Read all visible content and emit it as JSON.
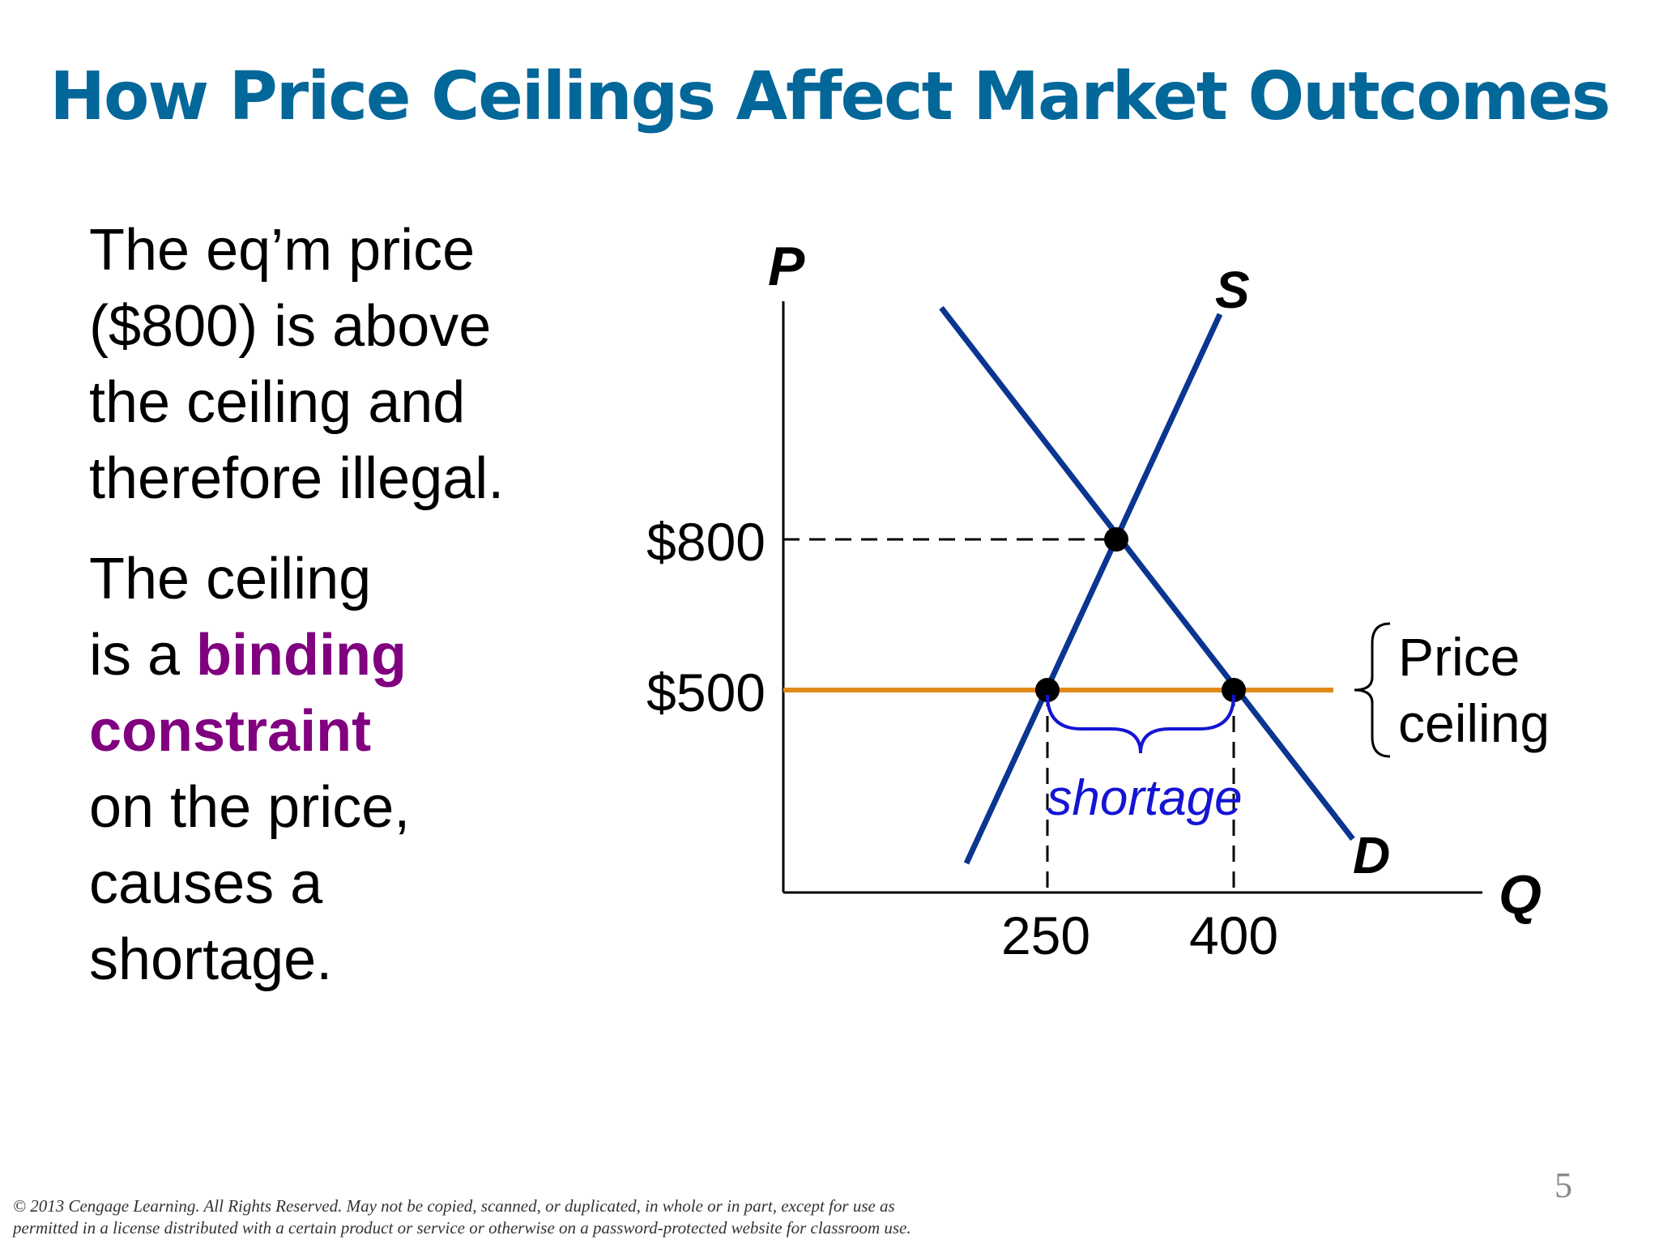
{
  "slide": {
    "title": "How Price Ceilings Affect Market Outcomes",
    "page_number": "5"
  },
  "body": {
    "para1": [
      "The eq’m price",
      "($800) is above",
      "the ceiling and",
      "therefore illegal."
    ],
    "para2": {
      "line1": "The ceiling",
      "line2_prefix": "is a ",
      "line2_highlight": "binding",
      "line3_highlight": "constraint",
      "line4": "on the price,",
      "line5": "causes a",
      "line6": "shortage."
    },
    "highlight_color": "#800080"
  },
  "diagram": {
    "y_axis_label": "P",
    "x_axis_label": "Q",
    "supply_label": "S",
    "demand_label": "D",
    "equilibrium_price": 800,
    "ceiling_price": 500,
    "equilibrium_price_label": "$800",
    "ceiling_price_label": "$500",
    "quantity_supplied": 250,
    "quantity_demanded": 400,
    "quantity_supplied_label": "250",
    "quantity_demanded_label": "400",
    "shortage_label": "shortage",
    "ceiling_label_line1": "Price",
    "ceiling_label_line2": "ceiling",
    "colors": {
      "curves": "#0a3590",
      "ceiling_line": "#e08a1a",
      "shortage": "#1414d4",
      "points": "#000000"
    }
  },
  "footer": {
    "line1": "© 2013 Cengage Learning. All Rights Reserved. May not be copied, scanned, or duplicated, in whole or in part, except for use as",
    "line2": "permitted in a license distributed with a certain product or service or otherwise on a password-protected website for classroom use."
  }
}
